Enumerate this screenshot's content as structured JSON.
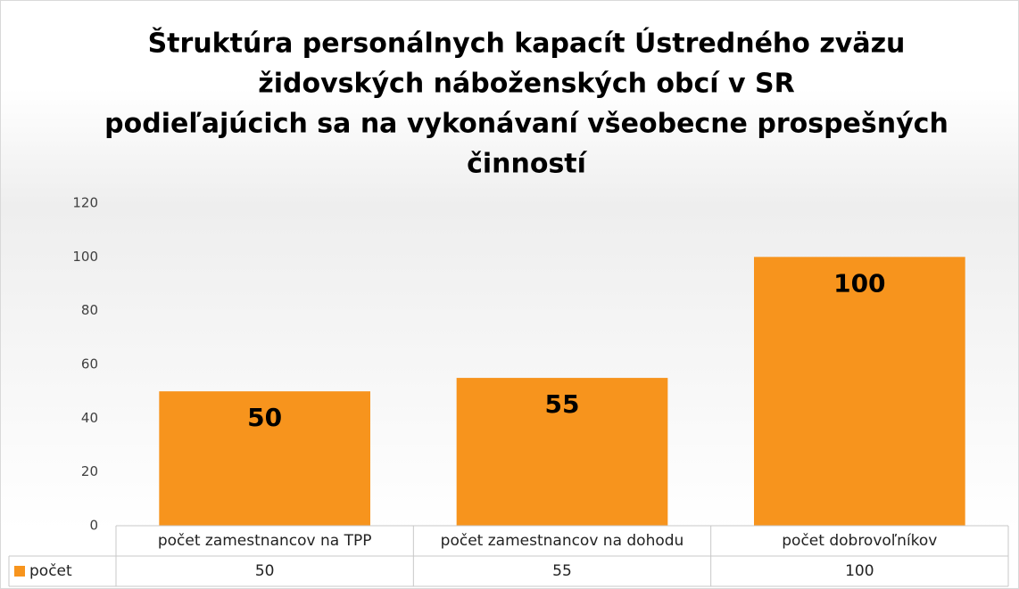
{
  "chart_data": {
    "type": "bar",
    "title": [
      "Štruktúra personálnych kapacít Ústredného zväzu",
      "židovských náboženských obcí v SR",
      "podieľajúcich sa na vykonávaní všeobecne prospešných",
      "činností"
    ],
    "categories": [
      "počet zamestnancov na TPP",
      "počet zamestnancov na dohodu",
      "počet dobrovoľníkov"
    ],
    "series": [
      {
        "name": "počet",
        "color": "#f7941d",
        "values": [
          50,
          55,
          100
        ]
      }
    ],
    "ylim": [
      0,
      120
    ],
    "yticks": [
      0,
      20,
      40,
      60,
      80,
      100,
      120
    ],
    "grid": false
  }
}
